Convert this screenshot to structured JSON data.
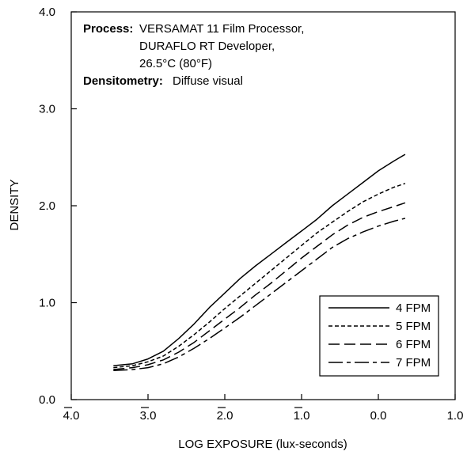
{
  "chart_data": {
    "type": "line",
    "xlabel": "LOG EXPOSURE (lux-seconds)",
    "ylabel": "DENSITY",
    "xlim": [
      -4.0,
      1.0
    ],
    "ylim": [
      0.0,
      4.0
    ],
    "x_ticks": [
      -4.0,
      -3.0,
      -2.0,
      -1.0,
      0.0,
      1.0
    ],
    "x_tick_labels": [
      "4.0",
      "3.0",
      "2.0",
      "1.0",
      "0.0",
      "1.0"
    ],
    "x_tick_bar": [
      true,
      true,
      true,
      true,
      false,
      false
    ],
    "y_ticks": [
      0.0,
      1.0,
      2.0,
      3.0,
      4.0
    ],
    "y_tick_labels": [
      "0.0",
      "1.0",
      "2.0",
      "3.0",
      "4.0"
    ],
    "grid": false,
    "legend_position": "bottom-right",
    "annotation": {
      "process_label": "Process:",
      "process_lines": [
        "VERSAMAT 11 Film Processor,",
        "DURAFLO RT Developer,",
        "26.5°C (80°F)"
      ],
      "densitometry_label": "Densitometry:",
      "densitometry_value": "Diffuse visual"
    },
    "series": [
      {
        "name": "4 FPM",
        "dash": "solid",
        "x": [
          -3.45,
          -3.2,
          -3.0,
          -2.8,
          -2.6,
          -2.4,
          -2.2,
          -2.0,
          -1.8,
          -1.6,
          -1.4,
          -1.2,
          -1.0,
          -0.8,
          -0.6,
          -0.4,
          -0.2,
          0.0,
          0.2,
          0.35
        ],
        "y": [
          0.35,
          0.37,
          0.42,
          0.5,
          0.63,
          0.78,
          0.95,
          1.1,
          1.25,
          1.38,
          1.5,
          1.62,
          1.74,
          1.86,
          2.0,
          2.12,
          2.24,
          2.36,
          2.46,
          2.53
        ]
      },
      {
        "name": "5 FPM",
        "dash": "short",
        "x": [
          -3.45,
          -3.2,
          -3.0,
          -2.8,
          -2.6,
          -2.4,
          -2.2,
          -2.0,
          -1.8,
          -1.6,
          -1.4,
          -1.2,
          -1.0,
          -0.8,
          -0.6,
          -0.4,
          -0.2,
          0.0,
          0.2,
          0.35
        ],
        "y": [
          0.33,
          0.35,
          0.39,
          0.45,
          0.55,
          0.67,
          0.8,
          0.94,
          1.07,
          1.2,
          1.33,
          1.46,
          1.59,
          1.72,
          1.83,
          1.94,
          2.04,
          2.12,
          2.19,
          2.23
        ]
      },
      {
        "name": "6 FPM",
        "dash": "long",
        "x": [
          -3.45,
          -3.2,
          -3.0,
          -2.8,
          -2.6,
          -2.4,
          -2.2,
          -2.0,
          -1.8,
          -1.6,
          -1.4,
          -1.2,
          -1.0,
          -0.8,
          -0.6,
          -0.4,
          -0.2,
          0.0,
          0.2,
          0.35
        ],
        "y": [
          0.31,
          0.33,
          0.36,
          0.41,
          0.49,
          0.59,
          0.71,
          0.83,
          0.95,
          1.08,
          1.2,
          1.33,
          1.46,
          1.58,
          1.7,
          1.8,
          1.88,
          1.94,
          1.99,
          2.03
        ]
      },
      {
        "name": "7 FPM",
        "dash": "dashdot",
        "x": [
          -3.45,
          -3.2,
          -3.0,
          -2.8,
          -2.6,
          -2.4,
          -2.2,
          -2.0,
          -1.8,
          -1.6,
          -1.4,
          -1.2,
          -1.0,
          -0.8,
          -0.6,
          -0.4,
          -0.2,
          0.0,
          0.2,
          0.35
        ],
        "y": [
          0.3,
          0.31,
          0.33,
          0.37,
          0.44,
          0.53,
          0.63,
          0.74,
          0.85,
          0.97,
          1.09,
          1.21,
          1.33,
          1.45,
          1.57,
          1.66,
          1.73,
          1.79,
          1.84,
          1.87
        ]
      }
    ]
  }
}
